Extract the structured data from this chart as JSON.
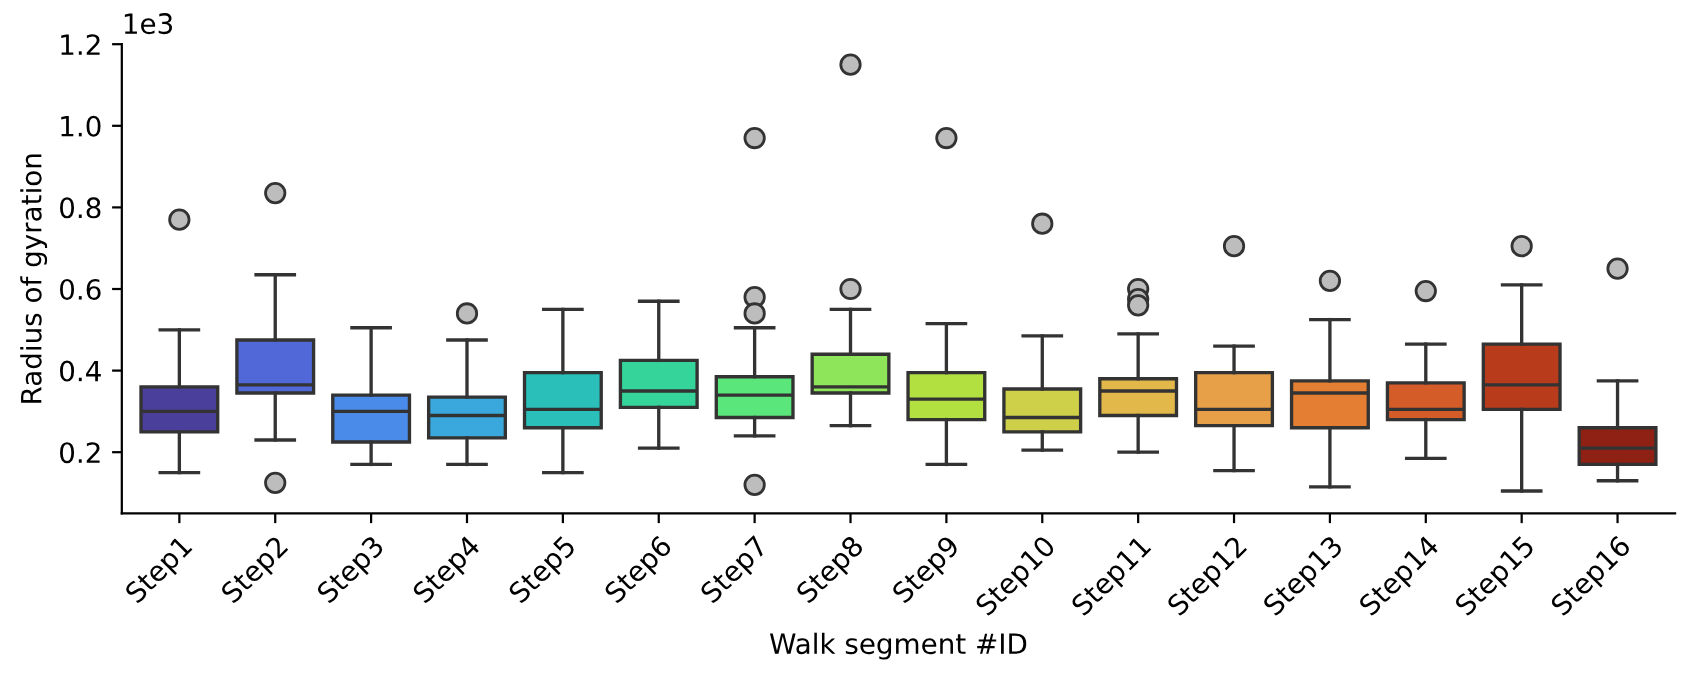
{
  "chart_data": {
    "type": "box",
    "xlabel": "Walk segment #ID",
    "ylabel": "Radius of gyration",
    "annotations": [
      "1e3"
    ],
    "categories": [
      "Step1",
      "Step2",
      "Step3",
      "Step4",
      "Step5",
      "Step6",
      "Step7",
      "Step8",
      "Step9",
      "Step10",
      "Step11",
      "Step12",
      "Step13",
      "Step14",
      "Step15",
      "Step16"
    ],
    "colors": [
      "#4a3f9a",
      "#5068d8",
      "#4a8ae8",
      "#3aa8dc",
      "#2abfb8",
      "#35d49a",
      "#5ae67a",
      "#8ee55a",
      "#b2e040",
      "#cdd048",
      "#e2b84a",
      "#e8a048",
      "#e47e32",
      "#d45c28",
      "#b83c1c",
      "#8e2014"
    ],
    "boxes": [
      {
        "low": 0.15,
        "q1": 0.25,
        "median": 0.3,
        "q3": 0.36,
        "high": 0.5,
        "outliers": [
          0.77
        ]
      },
      {
        "low": 0.23,
        "q1": 0.345,
        "median": 0.365,
        "q3": 0.475,
        "high": 0.635,
        "outliers": [
          0.835,
          0.125
        ]
      },
      {
        "low": 0.17,
        "q1": 0.225,
        "median": 0.3,
        "q3": 0.34,
        "high": 0.505
      },
      {
        "low": 0.17,
        "q1": 0.235,
        "median": 0.29,
        "q3": 0.335,
        "high": 0.475,
        "outliers": [
          0.54
        ]
      },
      {
        "low": 0.15,
        "q1": 0.26,
        "median": 0.305,
        "q3": 0.395,
        "high": 0.55
      },
      {
        "low": 0.21,
        "q1": 0.31,
        "median": 0.35,
        "q3": 0.425,
        "high": 0.57
      },
      {
        "low": 0.24,
        "q1": 0.285,
        "median": 0.34,
        "q3": 0.385,
        "high": 0.505,
        "outliers": [
          0.97,
          0.58,
          0.54,
          0.12
        ]
      },
      {
        "low": 0.265,
        "q1": 0.345,
        "median": 0.36,
        "q3": 0.44,
        "high": 0.55,
        "outliers": [
          1.15,
          0.6
        ]
      },
      {
        "low": 0.17,
        "q1": 0.28,
        "median": 0.33,
        "q3": 0.395,
        "high": 0.515,
        "outliers": [
          0.97
        ]
      },
      {
        "low": 0.205,
        "q1": 0.25,
        "median": 0.285,
        "q3": 0.355,
        "high": 0.485,
        "outliers": [
          0.76
        ]
      },
      {
        "low": 0.2,
        "q1": 0.29,
        "median": 0.35,
        "q3": 0.38,
        "high": 0.49,
        "outliers": [
          0.6,
          0.575,
          0.56
        ]
      },
      {
        "low": 0.155,
        "q1": 0.265,
        "median": 0.305,
        "q3": 0.395,
        "high": 0.46,
        "outliers": [
          0.705
        ]
      },
      {
        "low": 0.115,
        "q1": 0.26,
        "median": 0.345,
        "q3": 0.375,
        "high": 0.525,
        "outliers": [
          0.62
        ]
      },
      {
        "low": 0.185,
        "q1": 0.28,
        "median": 0.305,
        "q3": 0.37,
        "high": 0.465,
        "outliers": [
          0.595
        ]
      },
      {
        "low": 0.105,
        "q1": 0.305,
        "median": 0.365,
        "q3": 0.465,
        "high": 0.61,
        "outliers": [
          0.705
        ]
      },
      {
        "low": 0.13,
        "q1": 0.17,
        "median": 0.21,
        "q3": 0.26,
        "high": 0.375,
        "outliers": [
          0.65
        ]
      }
    ],
    "ylim": [
      0.05,
      1.2
    ],
    "yticks": [
      0.2,
      0.4,
      0.6,
      0.8,
      {
        "value": 1,
        "label": "1.0"
      },
      1.2
    ]
  }
}
